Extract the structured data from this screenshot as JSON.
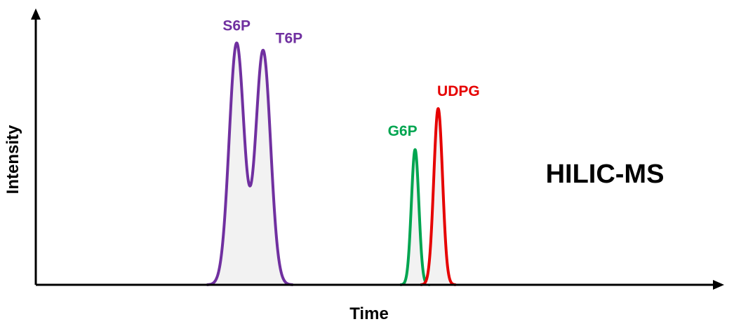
{
  "chart_data": {
    "type": "line",
    "title": "",
    "xlabel": "Time",
    "ylabel": "Intensity",
    "annotation": "HILIC-MS",
    "x_ticks": false,
    "y_ticks": false,
    "grid": false,
    "xlim": [
      0,
      100
    ],
    "ylim": [
      0,
      100
    ],
    "series": [
      {
        "name": "S6P / T6P",
        "color": "#7030a0",
        "peaks": [
          {
            "label": "S6P",
            "center": 29.6,
            "height": 100,
            "width": 1.1
          },
          {
            "label": "T6P",
            "center": 33.5,
            "height": 97,
            "width": 1.1
          }
        ]
      },
      {
        "name": "G6P",
        "color": "#00a550",
        "peaks": [
          {
            "label": "G6P",
            "center": 55.9,
            "height": 56,
            "width": 0.55
          }
        ]
      },
      {
        "name": "UDPG",
        "color": "#e60000",
        "peaks": [
          {
            "label": "UDPG",
            "center": 59.3,
            "height": 73,
            "width": 0.65
          }
        ]
      }
    ]
  }
}
